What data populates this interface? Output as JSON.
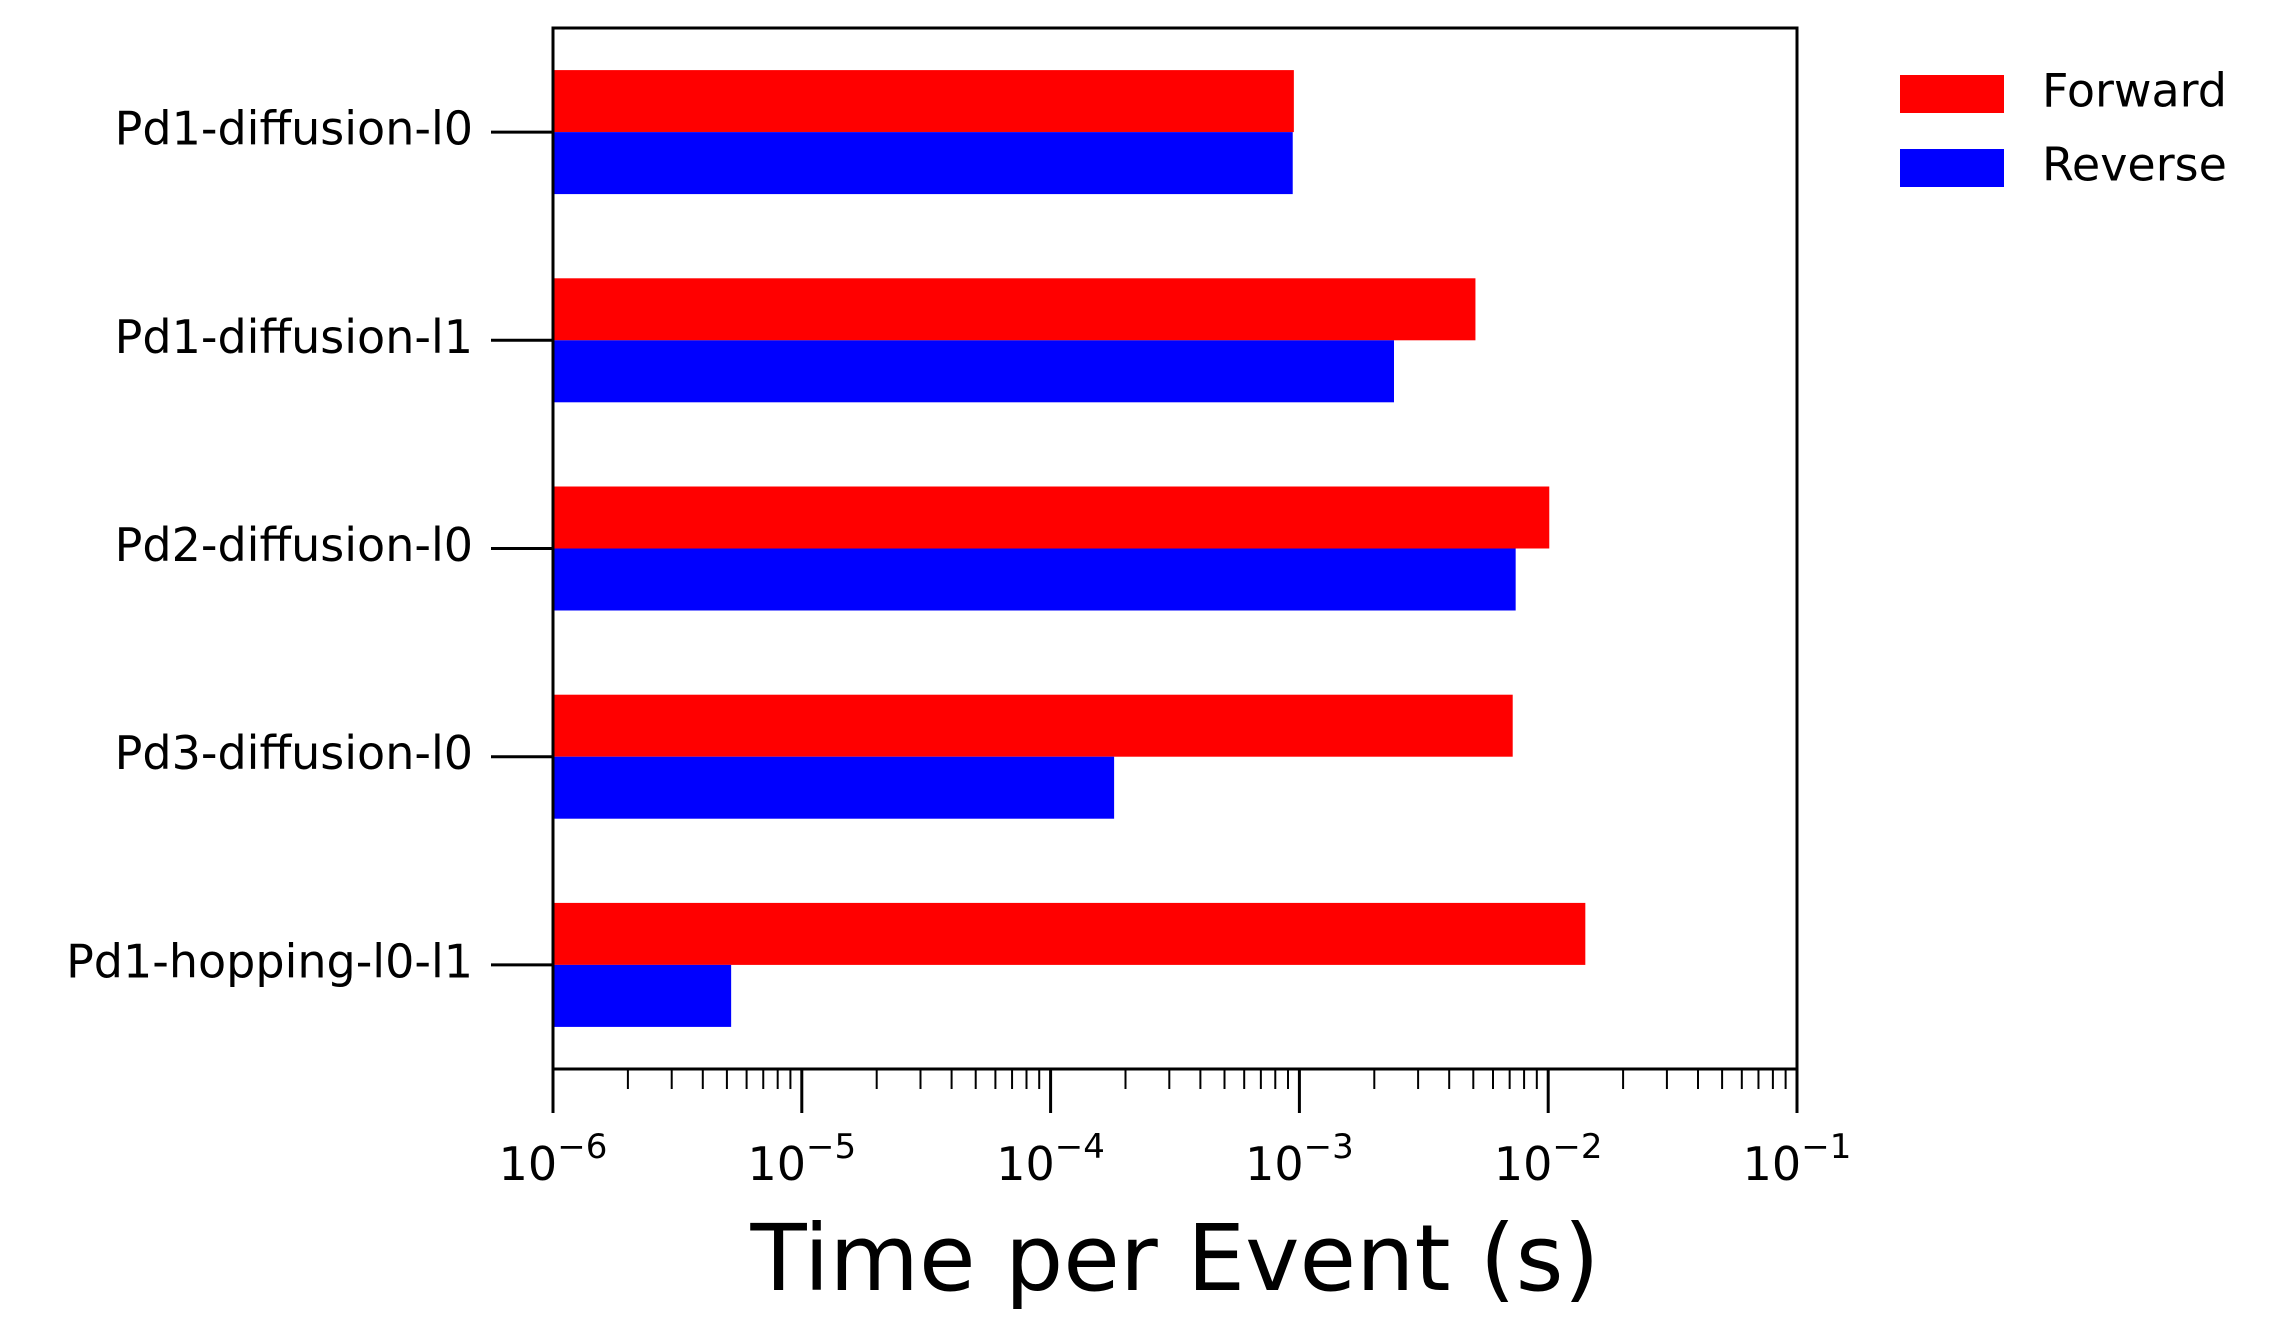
{
  "chart_data": {
    "type": "bar",
    "orientation": "horizontal",
    "title": "",
    "xlabel": "Time per Event (s)",
    "ylabel": "",
    "xscale": "log",
    "xlim": [
      1e-06,
      0.1
    ],
    "xtick_labels": [
      {
        "base": "10",
        "exp": "−6"
      },
      {
        "base": "10",
        "exp": "−5"
      },
      {
        "base": "10",
        "exp": "−4"
      },
      {
        "base": "10",
        "exp": "−3"
      },
      {
        "base": "10",
        "exp": "−2"
      },
      {
        "base": "10",
        "exp": "−1"
      }
    ],
    "categories": [
      "Pd1-diffusion-l0",
      "Pd1-diffusion-l1",
      "Pd2-diffusion-l0",
      "Pd3-diffusion-l0",
      "Pd1-hopping-l0-l1"
    ],
    "series": [
      {
        "name": "Forward",
        "color": "#ff0000",
        "values": [
          0.00095,
          0.0051,
          0.0101,
          0.0072,
          0.0141
        ]
      },
      {
        "name": "Reverse",
        "color": "#0000ff",
        "values": [
          0.00094,
          0.0024,
          0.0074,
          0.00018,
          5.2e-06
        ]
      }
    ],
    "grid": false,
    "legend_position": "outside-top-right"
  }
}
